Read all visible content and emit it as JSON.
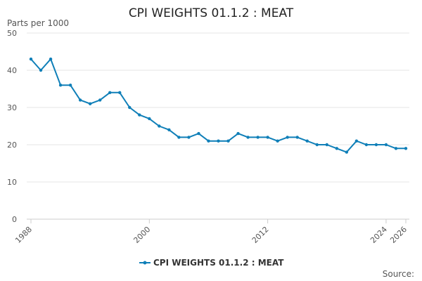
{
  "chart_data": {
    "type": "line",
    "title": "CPI WEIGHTS 01.1.2 : MEAT",
    "ylabel": "Parts per 1000",
    "xlabel": "",
    "ylim": [
      0,
      50
    ],
    "yticks": [
      0,
      10,
      20,
      30,
      40,
      50
    ],
    "xlim": [
      1988,
      2026
    ],
    "xticks": [
      1988,
      2000,
      2012,
      2024,
      2026
    ],
    "grid": true,
    "legend_position": "bottom",
    "series": [
      {
        "name": "CPI WEIGHTS 01.1.2 : MEAT",
        "color": "#0f7fb8",
        "x": [
          1988,
          1989,
          1990,
          1991,
          1992,
          1993,
          1994,
          1995,
          1996,
          1997,
          1998,
          1999,
          2000,
          2001,
          2002,
          2003,
          2004,
          2005,
          2006,
          2007,
          2008,
          2009,
          2010,
          2011,
          2012,
          2013,
          2014,
          2015,
          2016,
          2017,
          2018,
          2019,
          2020,
          2021,
          2022,
          2023,
          2024,
          2025,
          2026
        ],
        "values": [
          43,
          40,
          43,
          36,
          36,
          32,
          31,
          32,
          34,
          34,
          30,
          28,
          27,
          25,
          24,
          22,
          22,
          23,
          21,
          21,
          21,
          23,
          22,
          22,
          22,
          21,
          22,
          22,
          21,
          20,
          20,
          19,
          18,
          21,
          20,
          20,
          20,
          19,
          19
        ]
      }
    ]
  },
  "footer": {
    "source_label": "Source:"
  }
}
